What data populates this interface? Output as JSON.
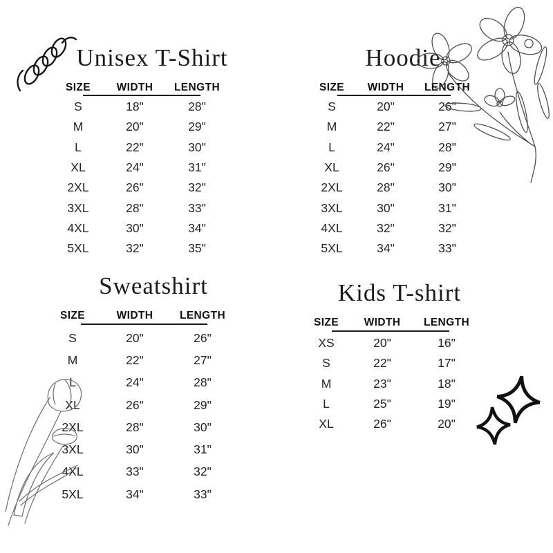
{
  "colors": {
    "background": "#ffffff",
    "text": "#242424",
    "heading": "#111111",
    "rule": "#1a1a1a",
    "doodle_dark": "#161616",
    "doodle_light": "#5a5a5a"
  },
  "tables": [
    {
      "id": "unisex-tshirt",
      "title": "Unisex T-Shirt",
      "columns": [
        "SIZE",
        "WIDTH",
        "LENGTH"
      ],
      "rows": [
        [
          "S",
          "18\"",
          "28\""
        ],
        [
          "M",
          "20\"",
          "29\""
        ],
        [
          "L",
          "22\"",
          "30\""
        ],
        [
          "XL",
          "24\"",
          "31\""
        ],
        [
          "2XL",
          "26\"",
          "32\""
        ],
        [
          "3XL",
          "28\"",
          "33\""
        ],
        [
          "4XL",
          "30\"",
          "34\""
        ],
        [
          "5XL",
          "32\"",
          "35\""
        ]
      ]
    },
    {
      "id": "hoodie",
      "title": "Hoodie",
      "columns": [
        "SIZE",
        "WIDTH",
        "LENGTH"
      ],
      "rows": [
        [
          "S",
          "20\"",
          "26\""
        ],
        [
          "M",
          "22\"",
          "27\""
        ],
        [
          "L",
          "24\"",
          "28\""
        ],
        [
          "XL",
          "26\"",
          "29\""
        ],
        [
          "2XL",
          "28\"",
          "30\""
        ],
        [
          "3XL",
          "30\"",
          "31\""
        ],
        [
          "4XL",
          "32\"",
          "32\""
        ],
        [
          "5XL",
          "34\"",
          "33\""
        ]
      ]
    },
    {
      "id": "sweatshirt",
      "title": "Sweatshirt",
      "columns": [
        "SIZE",
        "WIDTH",
        "LENGTH"
      ],
      "rows": [
        [
          "S",
          "20\"",
          "26\""
        ],
        [
          "M",
          "22\"",
          "27\""
        ],
        [
          "L",
          "24\"",
          "28\""
        ],
        [
          "XL",
          "26\"",
          "29\""
        ],
        [
          "2XL",
          "28\"",
          "30\""
        ],
        [
          "3XL",
          "30\"",
          "31\""
        ],
        [
          "4XL",
          "33\"",
          "32\""
        ],
        [
          "5XL",
          "34\"",
          "33\""
        ]
      ]
    },
    {
      "id": "kids-tshirt",
      "title": "Kids T-shirt",
      "columns": [
        "SIZE",
        "WIDTH",
        "LENGTH"
      ],
      "rows": [
        [
          "XS",
          "20\"",
          "16\""
        ],
        [
          "S",
          "22\"",
          "17\""
        ],
        [
          "M",
          "23\"",
          "18\""
        ],
        [
          "L",
          "25\"",
          "19\""
        ],
        [
          "XL",
          "26\"",
          "20\""
        ]
      ]
    }
  ],
  "decorations": [
    {
      "name": "spring-doodle-icon"
    },
    {
      "name": "flower-bouquet-icon"
    },
    {
      "name": "tulip-doodle-icon"
    },
    {
      "name": "sparkle-stars-icon"
    }
  ]
}
